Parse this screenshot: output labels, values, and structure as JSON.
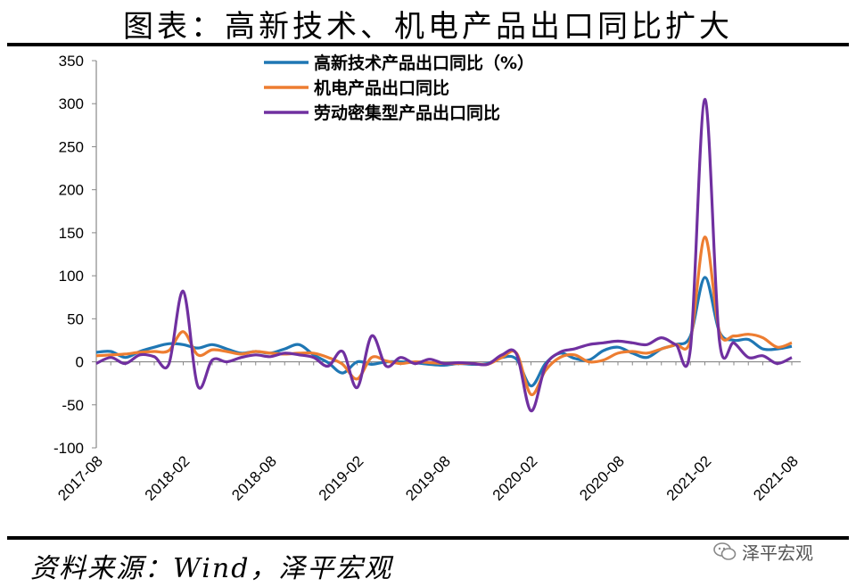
{
  "header": {
    "title": "图表：高新技术、机电产品出口同比扩大"
  },
  "footer": {
    "source": "资料来源：Wind，泽平宏观",
    "watermark": "泽平宏观"
  },
  "chart_data": {
    "type": "line",
    "title": "图表：高新技术、机电产品出口同比扩大",
    "ylim": [
      -100,
      350
    ],
    "yticks": [
      -100,
      -50,
      0,
      50,
      100,
      150,
      200,
      250,
      300,
      350
    ],
    "xtick_labels": [
      "2017-08",
      "2018-02",
      "2018-08",
      "2019-02",
      "2019-08",
      "2020-02",
      "2020-08",
      "2021-02",
      "2021-08"
    ],
    "grid": false,
    "legend_position": "top",
    "x": [
      "2017-08",
      "2017-09",
      "2017-10",
      "2017-11",
      "2017-12",
      "2018-01",
      "2018-02",
      "2018-03",
      "2018-04",
      "2018-05",
      "2018-06",
      "2018-07",
      "2018-08",
      "2018-09",
      "2018-10",
      "2018-11",
      "2018-12",
      "2019-01",
      "2019-02",
      "2019-03",
      "2019-04",
      "2019-05",
      "2019-06",
      "2019-07",
      "2019-08",
      "2019-09",
      "2019-10",
      "2019-11",
      "2019-12",
      "2020-01",
      "2020-02",
      "2020-03",
      "2020-04",
      "2020-05",
      "2020-06",
      "2020-07",
      "2020-08",
      "2020-09",
      "2020-10",
      "2020-11",
      "2020-12",
      "2021-01",
      "2021-02",
      "2021-03",
      "2021-04",
      "2021-05",
      "2021-06",
      "2021-07",
      "2021-08"
    ],
    "series": [
      {
        "name": "高新技术产品出口同比（%）",
        "color": "#1f77b4",
        "values": [
          11,
          12,
          5,
          12,
          17,
          21,
          20,
          16,
          20,
          15,
          10,
          12,
          10,
          15,
          20,
          8,
          -1,
          -13,
          0,
          -3,
          0,
          0,
          -1,
          -3,
          -4,
          -2,
          -3,
          -2,
          5,
          3,
          -28,
          -2,
          10,
          4,
          2,
          13,
          17,
          10,
          5,
          15,
          20,
          30,
          98,
          35,
          25,
          26,
          15,
          15,
          18
        ]
      },
      {
        "name": "机电产品出口同比",
        "color": "#ed7d31",
        "values": [
          7,
          8,
          9,
          11,
          12,
          13,
          35,
          8,
          14,
          12,
          9,
          12,
          10,
          9,
          10,
          10,
          5,
          -3,
          -20,
          5,
          1,
          -2,
          0,
          -1,
          -2,
          -2,
          -2,
          -3,
          5,
          10,
          -38,
          -10,
          5,
          8,
          0,
          2,
          10,
          12,
          10,
          15,
          20,
          25,
          145,
          35,
          30,
          32,
          28,
          17,
          22
        ]
      },
      {
        "name": "劳动密集型产品出口同比",
        "color": "#7030a0",
        "values": [
          -2,
          5,
          -2,
          8,
          6,
          -3,
          82,
          -28,
          2,
          0,
          5,
          8,
          6,
          10,
          8,
          5,
          -5,
          12,
          -30,
          30,
          -5,
          5,
          -2,
          3,
          -2,
          -1,
          -2,
          -3,
          8,
          9,
          -57,
          -5,
          11,
          15,
          20,
          22,
          24,
          22,
          20,
          28,
          20,
          15,
          305,
          25,
          22,
          5,
          7,
          -2,
          5
        ]
      }
    ]
  }
}
